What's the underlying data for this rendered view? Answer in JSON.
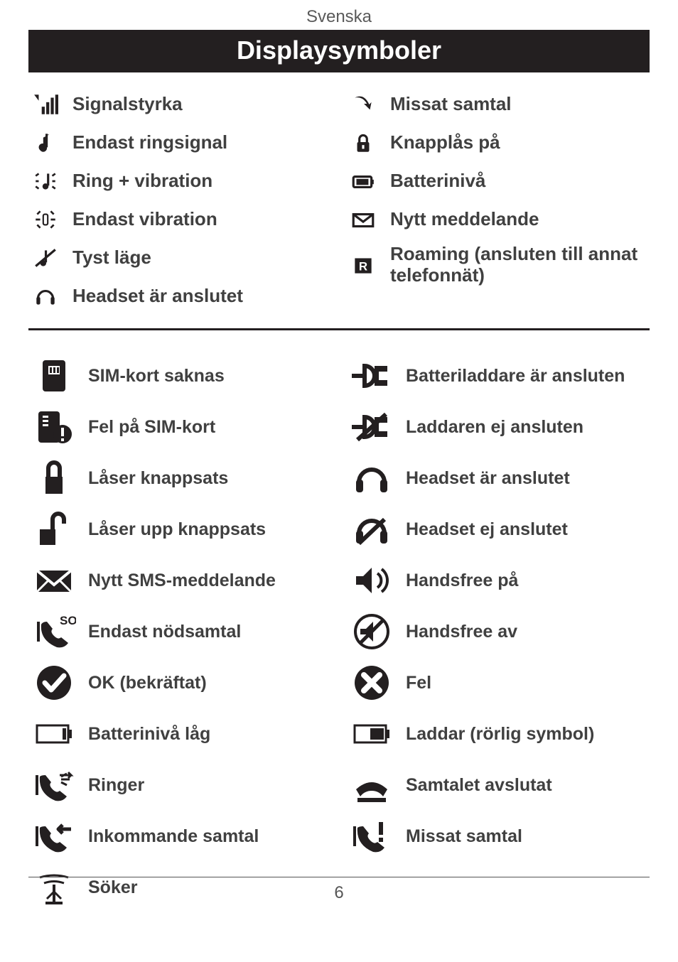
{
  "language_label": "Svenska",
  "title": "Displaysymboler",
  "page_number": "6",
  "colors": {
    "text": "#404040",
    "icon": "#231f20",
    "title_bg": "#231f20",
    "title_fg": "#ffffff",
    "background": "#ffffff",
    "divider": "#231f20"
  },
  "section1_left": [
    {
      "icon": "signal-bars-icon",
      "label": "Signalstyrka"
    },
    {
      "icon": "music-note-icon",
      "label": "Endast ringsignal"
    },
    {
      "icon": "note-vibration-icon",
      "label": "Ring + vibration"
    },
    {
      "icon": "vibration-only-icon",
      "label": "Endast vibration"
    },
    {
      "icon": "silent-icon",
      "label": "Tyst läge"
    },
    {
      "icon": "headset-small-icon",
      "label": "Headset är anslutet"
    }
  ],
  "section1_right": [
    {
      "icon": "missed-arrow-icon",
      "label": "Missat samtal"
    },
    {
      "icon": "padlock-icon",
      "label": "Knapplås på"
    },
    {
      "icon": "battery-small-icon",
      "label": "Batterinivå"
    },
    {
      "icon": "envelope-small-icon",
      "label": "Nytt meddelande"
    },
    {
      "icon": "roaming-r-icon",
      "label": "Roaming (ansluten till annat telefonnät)"
    }
  ],
  "section2_left": [
    {
      "icon": "sim-missing-icon",
      "label": "SIM-kort saknas"
    },
    {
      "icon": "sim-error-icon",
      "label": "Fel på SIM-kort"
    },
    {
      "icon": "lock-keypad-icon",
      "label": "Låser knappsats"
    },
    {
      "icon": "unlock-keypad-icon",
      "label": "Låser upp knappsats"
    },
    {
      "icon": "envelope-large-icon",
      "label": "Nytt SMS-meddelande"
    },
    {
      "icon": "sos-phone-icon",
      "label": "Endast nödsamtal"
    },
    {
      "icon": "checkmark-circle-icon",
      "label": "OK (bekräftat)"
    },
    {
      "icon": "battery-low-icon",
      "label": "Batterinivå låg"
    },
    {
      "icon": "phone-ringing-icon",
      "label": "Ringer"
    },
    {
      "icon": "phone-incoming-icon",
      "label": "Inkommande samtal"
    },
    {
      "icon": "searching-antenna-icon",
      "label": "Söker"
    }
  ],
  "section2_right": [
    {
      "icon": "charger-connected-icon",
      "label": "Batteriladdare är ansluten"
    },
    {
      "icon": "charger-disconnected-icon",
      "label": "Laddaren ej ansluten"
    },
    {
      "icon": "headset-large-icon",
      "label": "Headset är anslutet"
    },
    {
      "icon": "headset-off-icon",
      "label": "Headset ej anslutet"
    },
    {
      "icon": "handsfree-on-icon",
      "label": "Handsfree på"
    },
    {
      "icon": "handsfree-off-icon",
      "label": "Handsfree av"
    },
    {
      "icon": "error-circle-icon",
      "label": "Fel"
    },
    {
      "icon": "battery-charging-icon",
      "label": "Laddar (rörlig symbol)"
    },
    {
      "icon": "call-ended-icon",
      "label": "Samtalet avslutat"
    },
    {
      "icon": "phone-missed-icon",
      "label": "Missat samtal"
    }
  ]
}
